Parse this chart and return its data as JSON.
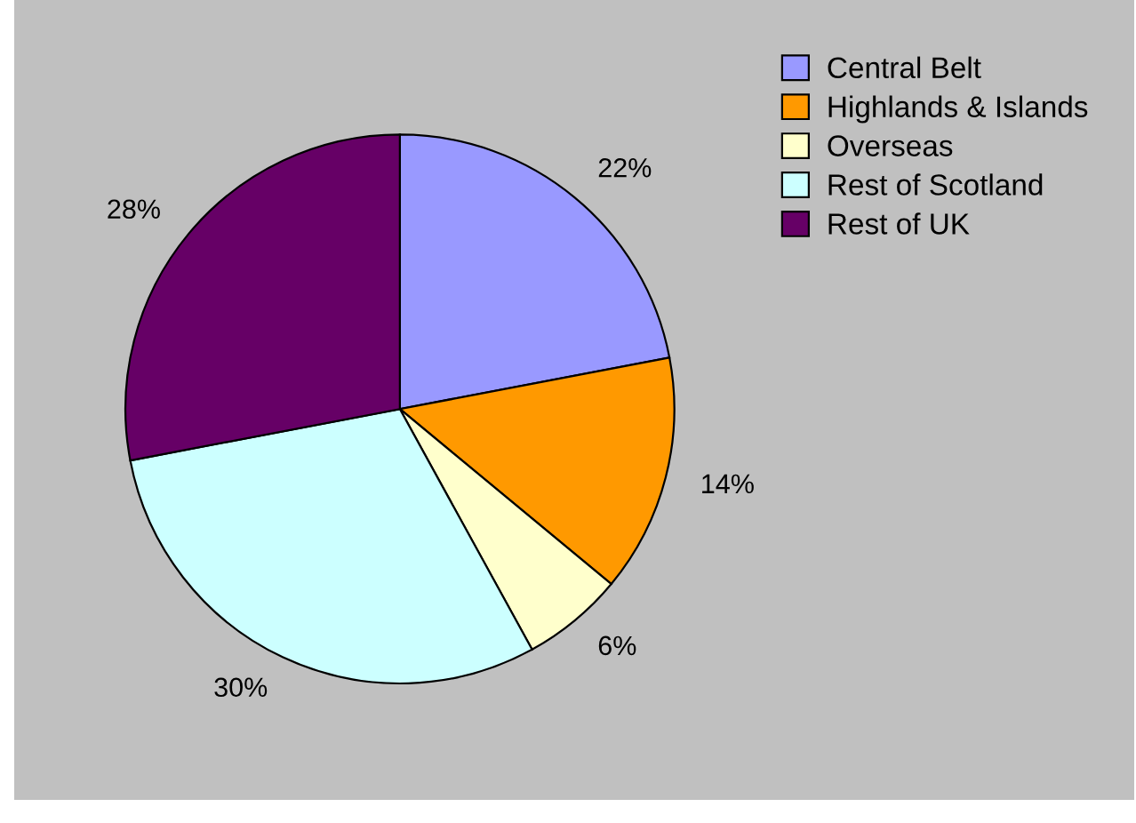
{
  "chart_data": {
    "type": "pie",
    "categories": [
      "Central Belt",
      "Highlands & Islands",
      "Overseas",
      "Rest of Scotland",
      "Rest of UK"
    ],
    "values": [
      22,
      14,
      6,
      30,
      28
    ],
    "value_labels": [
      "22%",
      "14%",
      "6%",
      "30%",
      "28%"
    ],
    "colors": [
      "#9999ff",
      "#ff9900",
      "#ffffcc",
      "#ccffff",
      "#660066"
    ],
    "legend": "top right"
  }
}
